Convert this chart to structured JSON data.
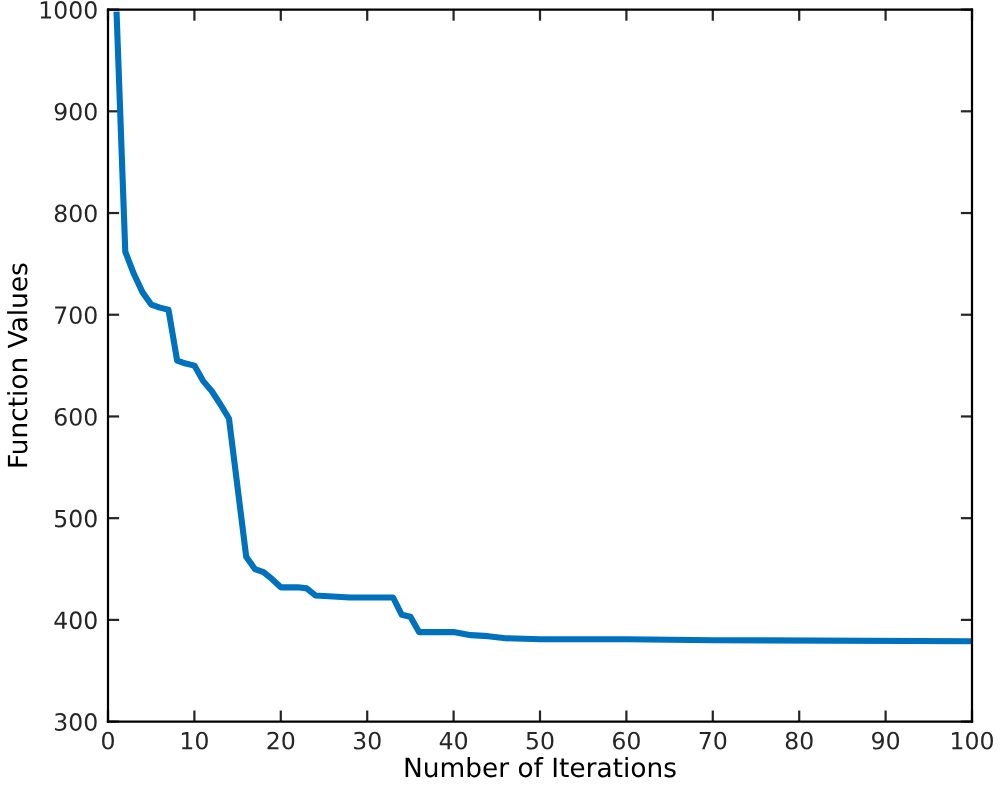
{
  "chart_data": {
    "type": "line",
    "xlabel": "Number of Iterations",
    "ylabel": "Function Values",
    "xlim": [
      0,
      100
    ],
    "xticks": [
      0,
      10,
      20,
      30,
      40,
      50,
      60,
      70,
      80,
      90,
      100
    ],
    "ylim": [
      300,
      1000
    ],
    "yticks": [
      300,
      400,
      500,
      600,
      700,
      800,
      900,
      1000
    ],
    "grid": false,
    "marker": "none",
    "line_style": "solid",
    "series": [
      {
        "color": "#0072bd",
        "x": [
          1,
          2,
          3,
          4,
          5,
          6,
          7,
          8,
          9,
          10,
          11,
          12,
          13,
          14,
          15,
          16,
          17,
          18,
          19,
          20,
          22,
          23,
          24,
          28,
          33,
          34,
          35,
          36,
          40,
          42,
          44,
          46,
          50,
          60,
          70,
          100
        ],
        "values": [
          995,
          762,
          740,
          722,
          710,
          707,
          705,
          655,
          652,
          650,
          635,
          625,
          612,
          598,
          530,
          462,
          450,
          447,
          440,
          432,
          432,
          431,
          424,
          422,
          422,
          405,
          403,
          388,
          388,
          385,
          384,
          382,
          381,
          381,
          380,
          379
        ]
      }
    ]
  }
}
